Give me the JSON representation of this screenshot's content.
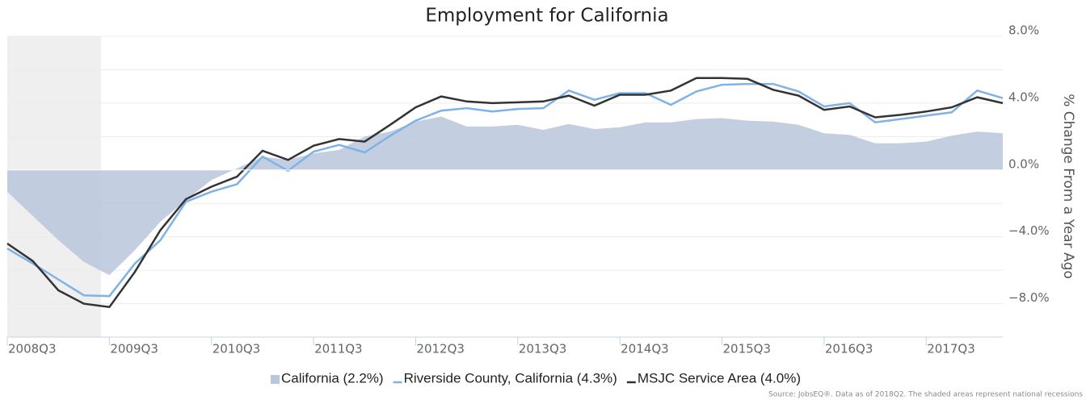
{
  "chart_data": {
    "type": "line",
    "title": "Employment for California",
    "y_axis_label": "% Change From a Year Ago",
    "source": "Source: JobsEQ®. Data as of 2018Q2. The shaded areas represent national recessions",
    "categories": [
      "2008Q3",
      null,
      null,
      null,
      "2009Q3",
      null,
      null,
      null,
      "2010Q3",
      null,
      null,
      null,
      "2011Q3",
      null,
      null,
      null,
      "2012Q3",
      null,
      null,
      null,
      "2013Q3",
      null,
      null,
      null,
      "2014Q3",
      null,
      null,
      null,
      "2015Q3",
      null,
      null,
      null,
      "2016Q3",
      null,
      null,
      null,
      "2017Q3",
      null,
      null,
      null
    ],
    "recession": {
      "start": 0,
      "end": 3
    },
    "ylim": [
      -10,
      8
    ],
    "yticks": [
      {
        "value": 8,
        "label": "8.0%"
      },
      {
        "value": 4,
        "label": "4.0%"
      },
      {
        "value": 0,
        "label": "0.0%"
      },
      {
        "value": -4,
        "label": "−4.0%"
      },
      {
        "value": -8,
        "label": "−8.0%"
      }
    ],
    "yminor": [
      6,
      2,
      -2,
      -6
    ],
    "grid": true,
    "legend": "bottom",
    "series": [
      {
        "name": "California (2.2%)",
        "kind": "area",
        "color": "#b8c7db",
        "values": [
          -1.3,
          -2.75,
          -4.2,
          -5.5,
          -6.3,
          -4.8,
          -3.1,
          -1.8,
          -0.6,
          0.1,
          0.8,
          0.6,
          1.0,
          1.2,
          2.0,
          2.3,
          2.9,
          3.2,
          2.6,
          2.6,
          2.7,
          2.4,
          2.75,
          2.45,
          2.55,
          2.85,
          2.85,
          3.05,
          3.1,
          2.95,
          2.9,
          2.7,
          2.2,
          2.1,
          1.6,
          1.6,
          1.7,
          2.05,
          2.3,
          2.2
        ]
      },
      {
        "name": "Riverside County, California (4.3%)",
        "kind": "line",
        "color": "#7fb2e5",
        "values": [
          -4.7,
          -5.6,
          -6.55,
          -7.5,
          -7.55,
          -5.6,
          -4.2,
          -1.9,
          -1.3,
          -0.85,
          0.8,
          -0.05,
          1.1,
          1.5,
          1.05,
          2.05,
          2.95,
          3.55,
          3.7,
          3.5,
          3.65,
          3.7,
          4.75,
          4.2,
          4.6,
          4.6,
          3.9,
          4.7,
          5.1,
          5.15,
          5.15,
          4.7,
          3.8,
          4.0,
          2.85,
          3.05,
          3.25,
          3.45,
          4.75,
          4.3
        ]
      },
      {
        "name": "MSJC Service Area (4.0%)",
        "kind": "line",
        "color": "#333333",
        "values": [
          -4.4,
          -5.45,
          -7.2,
          -8.0,
          -8.2,
          -6.1,
          -3.6,
          -1.75,
          -1.0,
          -0.4,
          1.15,
          0.6,
          1.45,
          1.85,
          1.7,
          2.7,
          3.75,
          4.4,
          4.1,
          4.0,
          4.05,
          4.1,
          4.45,
          3.85,
          4.5,
          4.5,
          4.75,
          5.5,
          5.5,
          5.45,
          4.8,
          4.45,
          3.6,
          3.8,
          3.15,
          3.3,
          3.5,
          3.75,
          4.35,
          4.0
        ]
      }
    ]
  }
}
